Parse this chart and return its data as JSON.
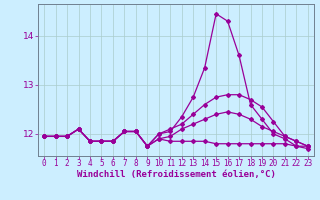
{
  "xlabel": "Windchill (Refroidissement éolien,°C)",
  "background_color": "#cceeff",
  "grid_color": "#aacccc",
  "line_color": "#990099",
  "xlim": [
    -0.5,
    23.5
  ],
  "ylim": [
    11.55,
    14.65
  ],
  "yticks": [
    12,
    13,
    14
  ],
  "xticks": [
    0,
    1,
    2,
    3,
    4,
    5,
    6,
    7,
    8,
    9,
    10,
    11,
    12,
    13,
    14,
    15,
    16,
    17,
    18,
    19,
    20,
    21,
    22,
    23
  ],
  "series": [
    [
      11.95,
      11.95,
      11.95,
      12.1,
      11.85,
      11.85,
      11.85,
      12.05,
      12.05,
      11.75,
      12.0,
      12.05,
      12.35,
      12.75,
      13.35,
      14.45,
      14.3,
      13.6,
      12.6,
      12.3,
      12.0,
      11.9,
      11.75,
      11.75
    ],
    [
      11.95,
      11.95,
      11.95,
      12.1,
      11.85,
      11.85,
      11.85,
      12.05,
      12.05,
      11.75,
      12.0,
      12.1,
      12.2,
      12.4,
      12.6,
      12.75,
      12.8,
      12.8,
      12.7,
      12.55,
      12.25,
      11.95,
      11.85,
      11.75
    ],
    [
      11.95,
      11.95,
      11.95,
      12.1,
      11.85,
      11.85,
      11.85,
      12.05,
      12.05,
      11.75,
      11.9,
      11.95,
      12.1,
      12.2,
      12.3,
      12.4,
      12.45,
      12.4,
      12.3,
      12.15,
      12.05,
      11.95,
      11.85,
      11.75
    ],
    [
      11.95,
      11.95,
      11.95,
      12.1,
      11.85,
      11.85,
      11.85,
      12.05,
      12.05,
      11.75,
      11.9,
      11.85,
      11.85,
      11.85,
      11.85,
      11.8,
      11.8,
      11.8,
      11.8,
      11.8,
      11.8,
      11.8,
      11.75,
      11.7
    ]
  ],
  "marker": "D",
  "markersize": 2.0,
  "linewidth": 0.9,
  "fontsize_ticks": 5.5,
  "fontsize_label": 6.5
}
